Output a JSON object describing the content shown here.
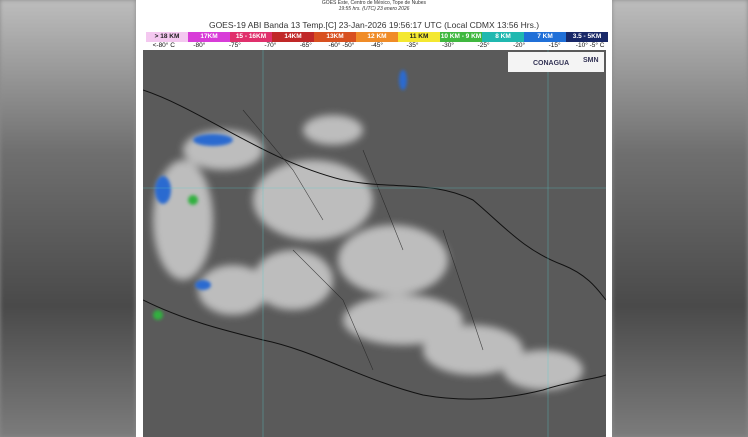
{
  "header": {
    "source": "GOES Este, Centro de México, Tope de Nubes",
    "time": "19:55 hrs. (UTC) 23 enero 2026",
    "title": "GOES-19 ABI Banda 13 Temp.[C] 23-Jan-2026 19:56:17 UTC (Local CDMX  13:56 Hrs.)"
  },
  "legend": {
    "bands": [
      {
        "label": "> 18 KM",
        "color": "#f4c8f0"
      },
      {
        "label": "17KM",
        "color": "#d83cd8"
      },
      {
        "label": "15 - 16KM",
        "color": "#e0306c"
      },
      {
        "label": "14KM",
        "color": "#c02828"
      },
      {
        "label": "13KM",
        "color": "#d85020"
      },
      {
        "label": "12 KM",
        "color": "#f08c28"
      },
      {
        "label": "11 KM",
        "color": "#f4e830"
      },
      {
        "label": "10 KM - 9 KM",
        "color": "#40b840"
      },
      {
        "label": "8 KM",
        "color": "#20b8b0"
      },
      {
        "label": "7 KM",
        "color": "#2070d8"
      },
      {
        "label": "3.5 - 5KM",
        "color": "#182868"
      }
    ],
    "temperatures": [
      "<-80° C",
      "-80°",
      "-75°",
      "-70°",
      "-65°",
      "-60° -50°",
      "-45°",
      "-35°",
      "-30°",
      "-25°",
      "-20°",
      "-15°",
      "-10°  -5° C"
    ]
  },
  "logos": [
    "CONAGUA",
    "SMN"
  ]
}
